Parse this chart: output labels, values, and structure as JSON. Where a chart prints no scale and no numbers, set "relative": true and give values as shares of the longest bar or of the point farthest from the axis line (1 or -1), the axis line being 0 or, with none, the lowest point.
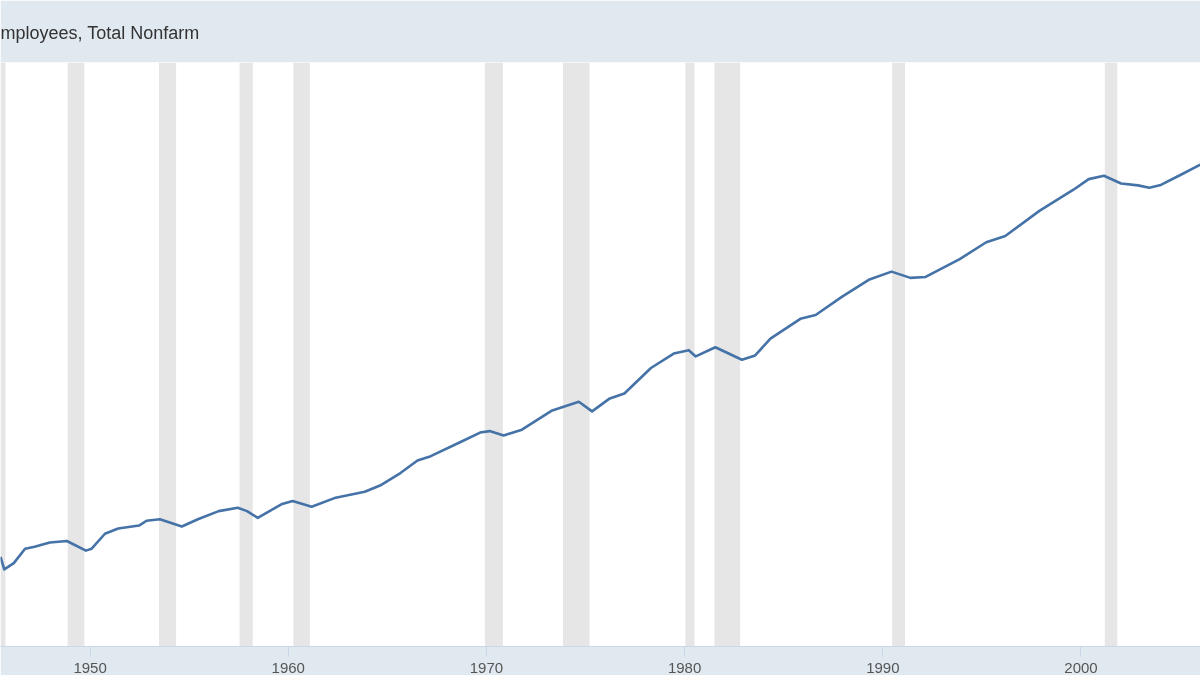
{
  "chart_data": {
    "type": "line",
    "title": "mployees, Total Nonfarm",
    "relative": true,
    "x": [
      1945.48,
      1945.67,
      1946.15,
      1946.72,
      1947.2,
      1947.97,
      1948.83,
      1949.79,
      1950.08,
      1950.75,
      1951.42,
      1952.47,
      1952.85,
      1953.52,
      1954.63,
      1955.44,
      1956.49,
      1957.45,
      1957.92,
      1958.46,
      1959.65,
      1960.22,
      1961.18,
      1962.33,
      1963.86,
      1964.63,
      1965.66,
      1966.52,
      1967.19,
      1968.72,
      1969.68,
      1970.16,
      1970.87,
      1971.79,
      1973.32,
      1974.66,
      1975.33,
      1976.19,
      1976.96,
      1978.3,
      1979.45,
      1980.21,
      1980.56,
      1981.55,
      1982.89,
      1983.56,
      1984.33,
      1985.84,
      1986.61,
      1987.95,
      1989.29,
      1990.44,
      1991.39,
      1992.16,
      1993.88,
      1995.22,
      1996.18,
      1997.9,
      1999.62,
      2000.39,
      2001.16,
      2002.02,
      2002.88,
      2003.45,
      2004.03,
      2004.99,
      2006.02
    ],
    "series": [
      {
        "color": "#4572a7",
        "values": [
          0.186,
          0.16,
          0.173,
          0.203,
          0.207,
          0.216,
          0.219,
          0.199,
          0.203,
          0.234,
          0.245,
          0.251,
          0.261,
          0.264,
          0.249,
          0.264,
          0.281,
          0.288,
          0.281,
          0.267,
          0.295,
          0.302,
          0.29,
          0.308,
          0.321,
          0.334,
          0.36,
          0.386,
          0.395,
          0.425,
          0.444,
          0.447,
          0.438,
          0.45,
          0.49,
          0.508,
          0.488,
          0.514,
          0.525,
          0.578,
          0.608,
          0.615,
          0.602,
          0.621,
          0.595,
          0.604,
          0.639,
          0.68,
          0.688,
          0.726,
          0.761,
          0.778,
          0.765,
          0.767,
          0.804,
          0.839,
          0.852,
          0.904,
          0.948,
          0.97,
          0.977,
          0.961,
          0.957,
          0.952,
          0.958,
          0.978,
          1.0
        ]
      }
    ],
    "xlim": [
      1945.48,
      2006.03
    ],
    "xticks": [
      1950,
      1960,
      1970,
      1980,
      1990,
      2000
    ],
    "bands": [
      {
        "axis": "x",
        "from": 1945.48,
        "to": 1945.73,
        "color": "#e6e6e6"
      },
      {
        "axis": "x",
        "from": 1948.87,
        "to": 1949.71,
        "color": "#e6e6e6"
      },
      {
        "axis": "x",
        "from": 1953.48,
        "to": 1954.34,
        "color": "#e6e6e6"
      },
      {
        "axis": "x",
        "from": 1957.54,
        "to": 1958.21,
        "color": "#e6e6e6"
      },
      {
        "axis": "x",
        "from": 1960.26,
        "to": 1961.09,
        "color": "#e6e6e6"
      },
      {
        "axis": "x",
        "from": 1969.92,
        "to": 1970.83,
        "color": "#e6e6e6"
      },
      {
        "axis": "x",
        "from": 1973.86,
        "to": 1975.2,
        "color": "#e6e6e6"
      },
      {
        "axis": "x",
        "from": 1980.04,
        "to": 1980.5,
        "color": "#e6e6e6"
      },
      {
        "axis": "x",
        "from": 1981.5,
        "to": 1982.8,
        "color": "#e6e6e6"
      },
      {
        "axis": "x",
        "from": 1990.47,
        "to": 1991.12,
        "color": "#e6e6e6"
      },
      {
        "axis": "x",
        "from": 2001.2,
        "to": 2001.83,
        "color": "#e6e6e6"
      }
    ]
  }
}
